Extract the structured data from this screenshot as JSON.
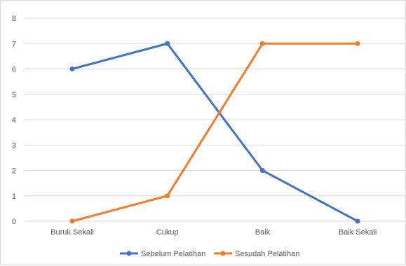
{
  "chart_data": {
    "type": "line",
    "title": "",
    "xlabel": "",
    "ylabel": "",
    "categories": [
      "Buruk Sekali",
      "Cukup",
      "Baik",
      "Baik Sekali"
    ],
    "ylim": [
      0,
      8
    ],
    "yticks": [
      "0",
      "1",
      "2",
      "3",
      "4",
      "5",
      "6",
      "7",
      "8"
    ],
    "grid": true,
    "legend_position": "bottom",
    "series": [
      {
        "name": "Sebelum Pelatihan",
        "values": [
          6,
          7,
          2,
          0
        ],
        "color": "#4472c4"
      },
      {
        "name": "Sesudah Pelatihan",
        "values": [
          0,
          1,
          7,
          7
        ],
        "color": "#ed7d31"
      }
    ]
  }
}
